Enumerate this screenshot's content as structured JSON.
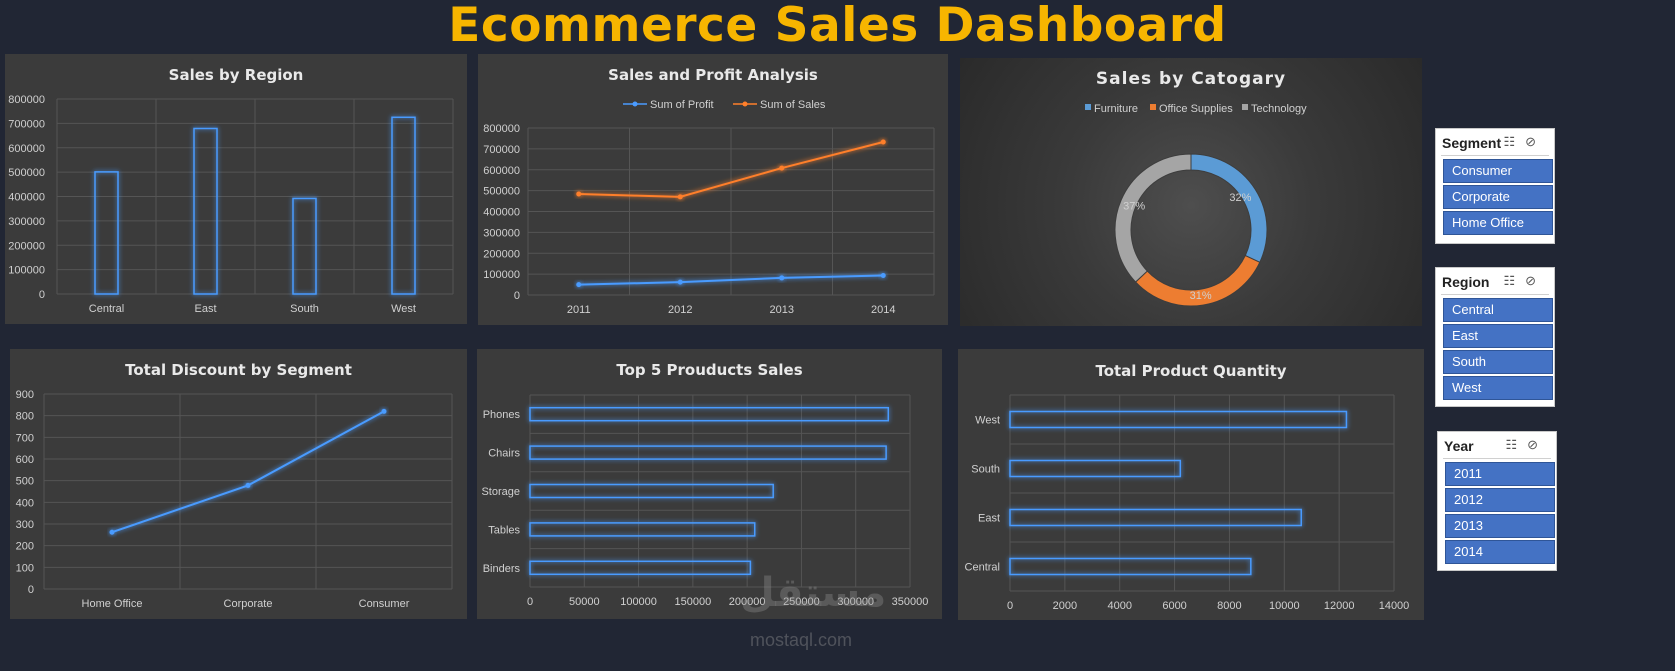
{
  "page_title": "Ecommerce Sales Dashboard",
  "colors": {
    "background": "#212634",
    "panel": "#3b3b3b",
    "title": "#f7b500",
    "blue": "#4a9bff",
    "orange": "#ff7f2a",
    "gray": "#9a9a9a",
    "slicer": "#4472c4"
  },
  "panels": {
    "region": {
      "title": "Sales by Region"
    },
    "profit": {
      "title": "Sales and Profit Analysis"
    },
    "category": {
      "title": "Sales  by Catogary"
    },
    "discount": {
      "title": "Total Discount by Segment"
    },
    "products": {
      "title": "Top 5 Prouducts Sales"
    },
    "quantity": {
      "title": "Total Product Quantity"
    }
  },
  "slicers": {
    "segment": {
      "title": "Segment",
      "items": [
        "Consumer",
        "Corporate",
        "Home Office"
      ]
    },
    "region": {
      "title": "Region",
      "items": [
        "Central",
        "East",
        "South",
        "West"
      ]
    },
    "year": {
      "title": "Year",
      "items": [
        "2011",
        "2012",
        "2013",
        "2014"
      ]
    },
    "icons": [
      "multi-select-icon",
      "clear-filter-icon"
    ]
  },
  "watermark": {
    "logo": "مستقل",
    "text": "mostaql.com"
  },
  "chart_data": [
    {
      "type": "bar",
      "id": "region",
      "title": "Sales by Region",
      "categories": [
        "Central",
        "East",
        "South",
        "West"
      ],
      "values": [
        501000,
        679000,
        392000,
        725000
      ],
      "ylim": [
        0,
        800000
      ],
      "yticks": [
        "0",
        "100000",
        "200000",
        "300000",
        "400000",
        "500000",
        "600000",
        "700000",
        "800000"
      ],
      "grid": true
    },
    {
      "type": "line",
      "id": "profit",
      "title": "Sales and Profit Analysis",
      "x": [
        "2011",
        "2012",
        "2013",
        "2014"
      ],
      "series": [
        {
          "name": "Sum of Profit",
          "values": [
            49500,
            61600,
            81800,
            93400
          ],
          "color": "#4a9bff"
        },
        {
          "name": "Sum of Sales",
          "values": [
            484000,
            470000,
            608000,
            733000
          ],
          "color": "#ff7f2a"
        }
      ],
      "ylim": [
        0,
        800000
      ],
      "yticks": [
        "0",
        "100000",
        "200000",
        "300000",
        "400000",
        "500000",
        "600000",
        "700000",
        "800000"
      ],
      "legend": "top",
      "grid": true
    },
    {
      "type": "pie",
      "id": "category",
      "title": "Sales  by Catogary",
      "categories": [
        "Furniture",
        "Office Supplies",
        "Technology"
      ],
      "values": [
        32,
        31,
        37
      ],
      "labels": [
        "32%",
        "31%",
        "37%"
      ],
      "colors": [
        "#5b9bd5",
        "#ed7d31",
        "#a5a5a5"
      ],
      "legend": "top",
      "donut": true
    },
    {
      "type": "line",
      "id": "discount",
      "title": "Total Discount by Segment",
      "x": [
        "Home Office",
        "Corporate",
        "Consumer"
      ],
      "series": [
        {
          "values": [
            262,
            478,
            820
          ],
          "color": "#4a9bff"
        }
      ],
      "ylim": [
        0,
        900
      ],
      "yticks": [
        "0",
        "100",
        "200",
        "300",
        "400",
        "500",
        "600",
        "700",
        "800",
        "900"
      ],
      "grid": true
    },
    {
      "type": "bar",
      "id": "products",
      "orientation": "horizontal",
      "title": "Top 5 Prouducts Sales",
      "categories": [
        "Phones",
        "Chairs",
        "Storage",
        "Tables",
        "Binders"
      ],
      "values": [
        330000,
        328000,
        224000,
        207000,
        203000
      ],
      "xlim": [
        0,
        350000
      ],
      "xticks": [
        "0",
        "50000",
        "100000",
        "150000",
        "200000",
        "250000",
        "300000",
        "350000"
      ],
      "grid": true
    },
    {
      "type": "bar",
      "id": "quantity",
      "orientation": "horizontal",
      "title": "Total Product Quantity",
      "categories": [
        "West",
        "South",
        "East",
        "Central"
      ],
      "values": [
        12266,
        6209,
        10618,
        8780
      ],
      "xlim": [
        0,
        14000
      ],
      "xticks": [
        "0",
        "2000",
        "4000",
        "6000",
        "8000",
        "10000",
        "12000",
        "14000"
      ],
      "grid": true
    }
  ]
}
